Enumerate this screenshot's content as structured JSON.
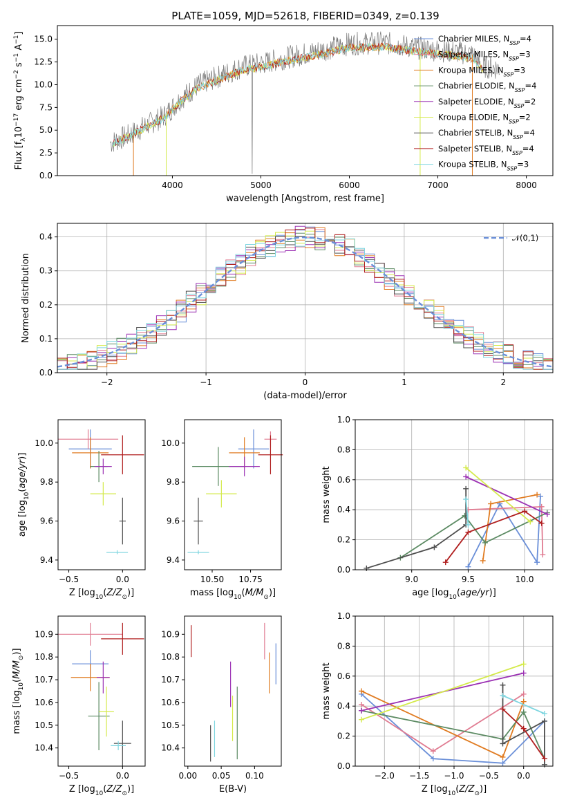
{
  "title": "PLATE=1059, MJD=52618, FIBERID=0349, z=0.139",
  "models": [
    {
      "name": "Chabrier MILES",
      "nssp": "4",
      "color": "#6a8fd8"
    },
    {
      "name": "Salpeter MILES",
      "nssp": "3",
      "color": "#e07b91"
    },
    {
      "name": "Kroupa MILES",
      "nssp": "3",
      "color": "#e07b21"
    },
    {
      "name": "Chabrier ELODIE",
      "nssp": "4",
      "color": "#5b8a62"
    },
    {
      "name": "Salpeter ELODIE",
      "nssp": "2",
      "color": "#9c32b4"
    },
    {
      "name": "Kroupa ELODIE",
      "nssp": "2",
      "color": "#d4ea4a"
    },
    {
      "name": "Chabrier STELIB",
      "nssp": "4",
      "color": "#4d4d4d"
    },
    {
      "name": "Salpeter STELIB",
      "nssp": "4",
      "color": "#b01e1e"
    },
    {
      "name": "Kroupa STELIB",
      "nssp": "3",
      "color": "#7fd6e0"
    }
  ],
  "chart_data": [
    {
      "type": "line",
      "panel": "spectrum",
      "title": "PLATE=1059, MJD=52618, FIBERID=0349, z=0.139",
      "xlabel": "wavelength [Angstrom, rest frame]",
      "ylabel": "Flux [f_λ 10^-17 erg cm^-2 s^-1 A^-1]",
      "xlim": [
        2700,
        8300
      ],
      "ylim": [
        0,
        16.5
      ],
      "xticks": [
        "4000",
        "5000",
        "6000",
        "7000",
        "8000"
      ],
      "yticks": [
        "0.0",
        "2.5",
        "5.0",
        "7.5",
        "10.0",
        "12.5",
        "15.0"
      ],
      "legend_loc": "upper right",
      "data_envelope": {
        "x": [
          3300,
          3500,
          3700,
          3900,
          4100,
          4300,
          4500,
          4800,
          5000,
          5300,
          5600,
          6000,
          6400,
          6800,
          7000,
          7200,
          7400,
          7500,
          7700
        ],
        "y": [
          3.6,
          4.4,
          5.5,
          6.5,
          8.5,
          10.0,
          10.8,
          12.0,
          12.3,
          13.0,
          13.6,
          14.5,
          14.6,
          14.0,
          13.8,
          13.6,
          13.3,
          12.0,
          11.8
        ]
      }
    },
    {
      "type": "bar",
      "panel": "residual-histogram",
      "xlabel": "(data-model)/error",
      "ylabel": "Normed distribution",
      "xlim": [
        -2.5,
        2.5
      ],
      "ylim": [
        0,
        0.44
      ],
      "xticks": [
        "−2",
        "−1",
        "0",
        "1",
        "2"
      ],
      "yticks": [
        "0.0",
        "0.1",
        "0.2",
        "0.3",
        "0.4"
      ],
      "grid": true,
      "legend": "𝒩(0,1)",
      "legend_loc": "upper right",
      "reference": "normal(0,1)"
    },
    {
      "type": "scatter",
      "panel": "age-vs-metallicity",
      "xlabel": "Z [log10(Z/Z⊙)]",
      "ylabel": "age [log10(age/yr)]",
      "xlim": [
        -0.6,
        0.21
      ],
      "ylim": [
        9.35,
        10.12
      ],
      "xticks": [
        "−0.5",
        "0.0"
      ],
      "yticks": [
        "9.4",
        "9.6",
        "9.8",
        "10.0"
      ],
      "points": [
        {
          "x": -0.3,
          "xerr": 0.2,
          "y": 9.97,
          "yerr": 0.1
        },
        {
          "x": -0.32,
          "xerr": 0.28,
          "y": 10.02,
          "yerr": 0.05
        },
        {
          "x": -0.3,
          "xerr": 0.17,
          "y": 9.95,
          "yerr": 0.08
        },
        {
          "x": -0.22,
          "xerr": 0.08,
          "y": 9.88,
          "yerr": 0.08
        },
        {
          "x": -0.18,
          "xerr": 0.08,
          "y": 9.88,
          "yerr": 0.04
        },
        {
          "x": -0.18,
          "xerr": 0.12,
          "y": 9.74,
          "yerr": 0.06
        },
        {
          "x": 0.0,
          "xerr": 0.03,
          "y": 9.6,
          "yerr": 0.12
        },
        {
          "x": 0.0,
          "xerr": 0.2,
          "y": 9.94,
          "yerr": 0.1
        },
        {
          "x": -0.05,
          "xerr": 0.1,
          "y": 9.44,
          "yerr": 0.01
        }
      ]
    },
    {
      "type": "scatter",
      "panel": "age-vs-mass",
      "xlabel": "mass [log10(M/M⊙)]",
      "ylabel": "",
      "xlim": [
        10.32,
        10.95
      ],
      "ylim": [
        9.35,
        10.12
      ],
      "xticks": [
        "10.50",
        "10.75"
      ],
      "yticks": [
        "9.4",
        "9.6",
        "9.8",
        "10.0"
      ],
      "points": [
        {
          "x": 10.77,
          "xerr": 0.1,
          "y": 9.97,
          "yerr": 0.1
        },
        {
          "x": 10.88,
          "xerr": 0.04,
          "y": 10.02,
          "yerr": 0.04
        },
        {
          "x": 10.71,
          "xerr": 0.1,
          "y": 9.95,
          "yerr": 0.08
        },
        {
          "x": 10.54,
          "xerr": 0.17,
          "y": 9.88,
          "yerr": 0.1
        },
        {
          "x": 10.71,
          "xerr": 0.1,
          "y": 9.88,
          "yerr": 0.05
        },
        {
          "x": 10.56,
          "xerr": 0.1,
          "y": 9.74,
          "yerr": 0.07
        },
        {
          "x": 10.41,
          "xerr": 0.03,
          "y": 9.6,
          "yerr": 0.12
        },
        {
          "x": 10.88,
          "xerr": 0.08,
          "y": 9.94,
          "yerr": 0.1
        },
        {
          "x": 10.41,
          "xerr": 0.07,
          "y": 9.44,
          "yerr": 0.01
        }
      ]
    },
    {
      "type": "line",
      "panel": "mass-weight-vs-age",
      "xlabel": "age [log10(age/yr)]",
      "ylabel": "mass weight",
      "xlim": [
        8.5,
        10.25
      ],
      "ylim": [
        0,
        1
      ],
      "xticks": [
        "9.0",
        "9.5",
        "10.0"
      ],
      "yticks": [
        "0.0",
        "0.2",
        "0.4",
        "0.6",
        "0.8",
        "1.0"
      ],
      "grid": true,
      "series": [
        {
          "x": [
            9.5,
            9.78,
            10.11,
            10.14
          ],
          "y": [
            0.02,
            0.44,
            0.05,
            0.49
          ]
        },
        {
          "x": [
            9.5,
            10.15,
            10.16
          ],
          "y": [
            0.4,
            0.42,
            0.1
          ]
        },
        {
          "x": [
            9.63,
            9.7,
            10.11
          ],
          "y": [
            0.06,
            0.44,
            0.5
          ]
        },
        {
          "x": [
            8.9,
            9.47,
            9.65,
            10.2
          ],
          "y": [
            0.08,
            0.36,
            0.18,
            0.38
          ]
        },
        {
          "x": [
            9.48,
            10.2
          ],
          "y": [
            0.62,
            0.37
          ]
        },
        {
          "x": [
            9.48,
            10.05
          ],
          "y": [
            0.68,
            0.32
          ]
        },
        {
          "x": [
            8.6,
            9.2,
            9.48,
            9.48
          ],
          "y": [
            0.01,
            0.15,
            0.3,
            0.54
          ]
        },
        {
          "x": [
            9.3,
            9.5,
            10.0,
            10.15
          ],
          "y": [
            0.05,
            0.25,
            0.39,
            0.31
          ]
        },
        {
          "x": [
            9.48,
            9.5
          ],
          "y": [
            0.47,
            0.3
          ]
        }
      ]
    },
    {
      "type": "scatter",
      "panel": "mass-vs-metallicity",
      "xlabel": "Z [log10(Z/Z⊙)]",
      "ylabel": "mass [log10(M/M⊙)]",
      "xlim": [
        -0.6,
        0.21
      ],
      "ylim": [
        10.32,
        10.98
      ],
      "xticks": [
        "−0.5",
        "0.0"
      ],
      "yticks": [
        "10.4",
        "10.5",
        "10.6",
        "10.7",
        "10.8",
        "10.9"
      ],
      "points": [
        {
          "x": -0.3,
          "xerr": 0.17,
          "y": 10.77,
          "yerr": 0.06
        },
        {
          "x": -0.3,
          "xerr": 0.3,
          "y": 10.9,
          "yerr": 0.05
        },
        {
          "x": -0.3,
          "xerr": 0.18,
          "y": 10.71,
          "yerr": 0.06
        },
        {
          "x": -0.22,
          "xerr": 0.1,
          "y": 10.54,
          "yerr": 0.15
        },
        {
          "x": -0.18,
          "xerr": 0.06,
          "y": 10.71,
          "yerr": 0.07
        },
        {
          "x": -0.15,
          "xerr": 0.07,
          "y": 10.56,
          "yerr": 0.11
        },
        {
          "x": 0.0,
          "xerr": 0.08,
          "y": 10.42,
          "yerr": 0.1
        },
        {
          "x": 0.0,
          "xerr": 0.2,
          "y": 10.88,
          "yerr": 0.07
        },
        {
          "x": -0.04,
          "xerr": 0.07,
          "y": 10.41,
          "yerr": 0.02
        }
      ]
    },
    {
      "type": "scatter",
      "panel": "mass-vs-extinction",
      "xlabel": "E(B-V)",
      "ylabel": "",
      "xlim": [
        -0.005,
        0.14
      ],
      "ylim": [
        10.32,
        10.98
      ],
      "xticks": [
        "0.00",
        "0.05",
        "0.10"
      ],
      "yticks": [
        "10.4",
        "10.5",
        "10.6",
        "10.7",
        "10.8",
        "10.9"
      ],
      "points": [
        {
          "x": 0.132,
          "y": 10.77,
          "yerr": 0.09
        },
        {
          "x": 0.115,
          "y": 10.87,
          "yerr": 0.08
        },
        {
          "x": 0.122,
          "y": 10.73,
          "yerr": 0.09
        },
        {
          "x": 0.074,
          "y": 10.51,
          "yerr": 0.16
        },
        {
          "x": 0.064,
          "y": 10.68,
          "yerr": 0.1
        },
        {
          "x": 0.067,
          "y": 10.53,
          "yerr": 0.1
        },
        {
          "x": 0.034,
          "y": 10.42,
          "yerr": 0.08
        },
        {
          "x": 0.005,
          "y": 10.87,
          "yerr": 0.07
        },
        {
          "x": 0.04,
          "y": 10.44,
          "yerr": 0.08
        }
      ]
    },
    {
      "type": "line",
      "panel": "mass-weight-vs-metallicity",
      "xlabel": "Z [log10(Z/Z⊙)]",
      "ylabel": "mass weight",
      "xlim": [
        -2.42,
        0.42
      ],
      "ylim": [
        0,
        1
      ],
      "xticks": [
        "−2.0",
        "−1.5",
        "−1.0",
        "−0.5",
        "0.0"
      ],
      "yticks": [
        "0.0",
        "0.2",
        "0.4",
        "0.6",
        "0.8",
        "1.0"
      ],
      "grid": true,
      "series": [
        {
          "x": [
            -2.33,
            -1.3,
            -0.3,
            0.3
          ],
          "y": [
            0.48,
            0.05,
            0.02,
            0.3
          ]
        },
        {
          "x": [
            -2.33,
            -1.3,
            0.0
          ],
          "y": [
            0.41,
            0.1,
            0.48
          ]
        },
        {
          "x": [
            -2.33,
            -0.3,
            0.0
          ],
          "y": [
            0.5,
            0.06,
            0.43
          ]
        },
        {
          "x": [
            -2.33,
            -0.3,
            0.0,
            0.3
          ],
          "y": [
            0.37,
            0.18,
            0.36,
            0.05
          ]
        },
        {
          "x": [
            -2.33,
            0.0
          ],
          "y": [
            0.37,
            0.62
          ]
        },
        {
          "x": [
            -2.33,
            0.0
          ],
          "y": [
            0.31,
            0.68
          ]
        },
        {
          "x": [
            -0.3,
            -0.3,
            0.3,
            0.3
          ],
          "y": [
            0.54,
            0.15,
            0.3,
            0.01
          ]
        },
        {
          "x": [
            -0.3,
            0.0,
            0.3
          ],
          "y": [
            0.38,
            0.25,
            0.05
          ]
        },
        {
          "x": [
            -0.3,
            0.3
          ],
          "y": [
            0.47,
            0.35
          ]
        }
      ]
    }
  ]
}
